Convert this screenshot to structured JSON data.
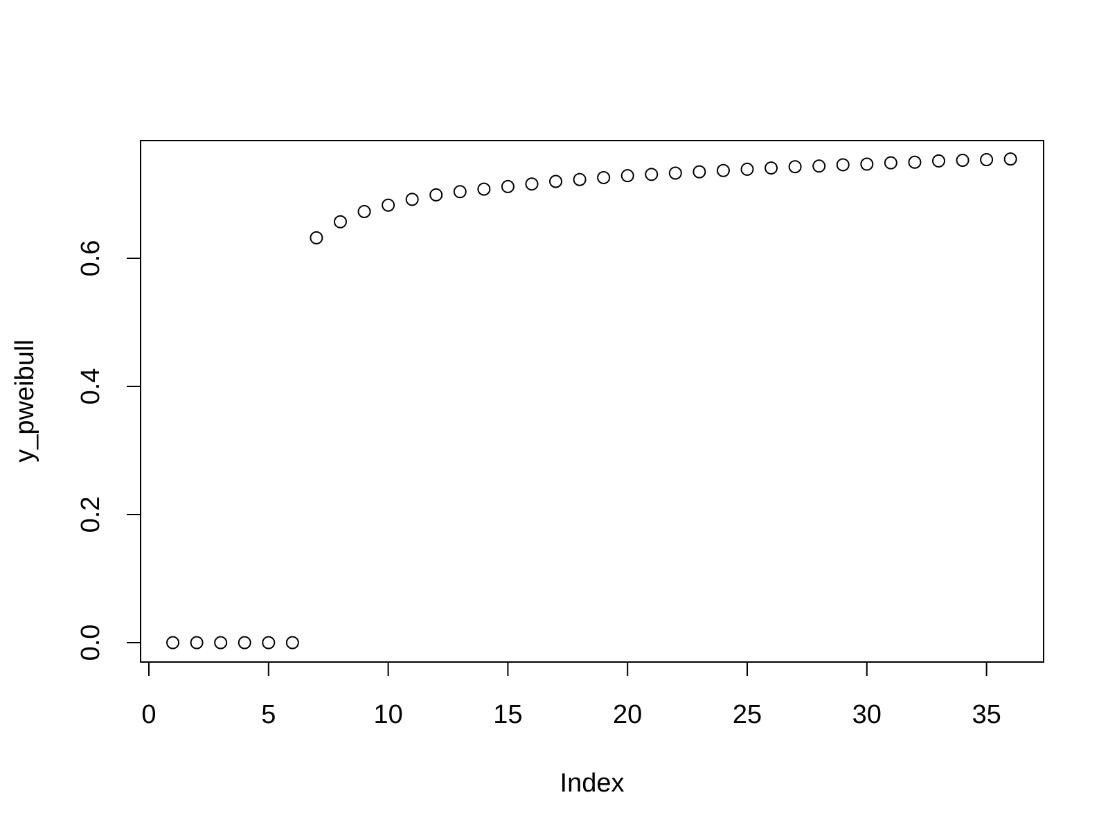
{
  "chart_data": {
    "type": "scatter",
    "title": "",
    "xlabel": "Index",
    "ylabel": "y_pweibull",
    "xlim": [
      0,
      37
    ],
    "ylim": [
      0,
      0.77
    ],
    "x_ticks": [
      0,
      5,
      10,
      15,
      20,
      25,
      30,
      35
    ],
    "x_tick_labels": [
      "0",
      "5",
      "10",
      "15",
      "20",
      "25",
      "30",
      "35"
    ],
    "y_ticks": [
      0,
      0.2,
      0.4,
      0.6
    ],
    "y_tick_labels": [
      "0.0",
      "0.2",
      "0.4",
      "0.6"
    ],
    "grid": false,
    "marker": "open-circle",
    "series": [
      {
        "x": [
          1,
          2,
          3,
          4,
          5,
          6,
          7,
          8,
          9,
          10,
          11,
          12,
          13,
          14,
          15,
          16,
          17,
          18,
          19,
          20,
          21,
          22,
          23,
          24,
          25,
          26,
          27,
          28,
          29,
          30,
          31,
          32,
          33,
          34,
          35,
          36
        ],
        "y": [
          0,
          0,
          0,
          0,
          0,
          0,
          0.632,
          0.657,
          0.673,
          0.683,
          0.692,
          0.699,
          0.704,
          0.708,
          0.712,
          0.716,
          0.72,
          0.723,
          0.726,
          0.729,
          0.731,
          0.733,
          0.735,
          0.737,
          0.739,
          0.741,
          0.743,
          0.744,
          0.746,
          0.747,
          0.749,
          0.75,
          0.752,
          0.753,
          0.754,
          0.755
        ]
      }
    ]
  }
}
